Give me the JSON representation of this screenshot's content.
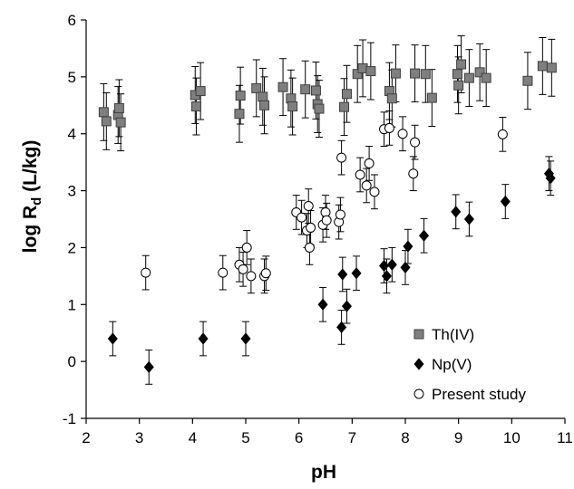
{
  "chart_data": {
    "type": "scatter",
    "xlabel": "pH",
    "ylabel_main": "log R",
    "ylabel_sub": "d",
    "ylabel_unit": " (L/kg)",
    "xlim": [
      2,
      11
    ],
    "ylim": [
      -1,
      6
    ],
    "x_ticks": [
      2,
      3,
      4,
      5,
      6,
      7,
      8,
      9,
      10,
      11
    ],
    "y_ticks": [
      -1,
      0,
      1,
      2,
      3,
      4,
      5,
      6
    ],
    "legend_position": "lower-right",
    "series": [
      {
        "name": "Th(IV)",
        "marker": "square",
        "color": "#7f7f7f",
        "error": 0.5,
        "points": [
          [
            2.33,
            4.38
          ],
          [
            2.38,
            4.22
          ],
          [
            2.6,
            4.33
          ],
          [
            2.62,
            4.45
          ],
          [
            2.65,
            4.2
          ],
          [
            4.05,
            4.68
          ],
          [
            4.07,
            4.48
          ],
          [
            4.15,
            4.75
          ],
          [
            4.88,
            4.35
          ],
          [
            4.9,
            4.67
          ],
          [
            5.2,
            4.8
          ],
          [
            5.32,
            4.65
          ],
          [
            5.35,
            4.5
          ],
          [
            5.7,
            4.82
          ],
          [
            5.85,
            4.62
          ],
          [
            5.88,
            4.48
          ],
          [
            6.12,
            4.78
          ],
          [
            6.32,
            4.76
          ],
          [
            6.35,
            4.52
          ],
          [
            6.38,
            4.44
          ],
          [
            6.85,
            4.47
          ],
          [
            6.9,
            4.7
          ],
          [
            7.1,
            5.05
          ],
          [
            7.2,
            5.15
          ],
          [
            7.35,
            5.1
          ],
          [
            7.7,
            4.75
          ],
          [
            7.75,
            4.62
          ],
          [
            7.82,
            5.06
          ],
          [
            8.18,
            5.06
          ],
          [
            8.38,
            5.05
          ],
          [
            8.5,
            4.63
          ],
          [
            8.98,
            5.05
          ],
          [
            9.0,
            4.85
          ],
          [
            9.05,
            5.22
          ],
          [
            9.2,
            4.98
          ],
          [
            9.4,
            5.08
          ],
          [
            9.52,
            4.98
          ],
          [
            10.3,
            4.93
          ],
          [
            10.58,
            5.19
          ],
          [
            10.75,
            5.16
          ]
        ]
      },
      {
        "name": "Np(V)",
        "marker": "diamond",
        "color": "#000000",
        "error": 0.3,
        "points": [
          [
            2.5,
            0.4
          ],
          [
            3.18,
            -0.1
          ],
          [
            4.2,
            0.4
          ],
          [
            5.0,
            0.4
          ],
          [
            6.45,
            1.0
          ],
          [
            6.8,
            0.6
          ],
          [
            6.82,
            1.53
          ],
          [
            6.9,
            0.97
          ],
          [
            7.08,
            1.55
          ],
          [
            7.6,
            1.68
          ],
          [
            7.65,
            1.5
          ],
          [
            7.75,
            1.7
          ],
          [
            8.0,
            1.65
          ],
          [
            8.05,
            2.02
          ],
          [
            8.35,
            2.21
          ],
          [
            8.95,
            2.63
          ],
          [
            9.2,
            2.5
          ],
          [
            9.88,
            2.81
          ],
          [
            10.7,
            3.3
          ],
          [
            10.73,
            3.22
          ]
        ]
      },
      {
        "name": "Present study",
        "marker": "circle",
        "color": "#ffffff",
        "error": 0.3,
        "points": [
          [
            3.12,
            1.56
          ],
          [
            4.57,
            1.56
          ],
          [
            4.88,
            1.7
          ],
          [
            4.95,
            1.62
          ],
          [
            5.02,
            2.0
          ],
          [
            5.1,
            1.5
          ],
          [
            5.35,
            1.5
          ],
          [
            5.38,
            1.55
          ],
          [
            5.95,
            2.62
          ],
          [
            6.05,
            2.53
          ],
          [
            6.15,
            2.3
          ],
          [
            6.18,
            2.73
          ],
          [
            6.2,
            2.0
          ],
          [
            6.22,
            2.35
          ],
          [
            6.45,
            2.4
          ],
          [
            6.5,
            2.62
          ],
          [
            6.52,
            2.48
          ],
          [
            6.75,
            2.45
          ],
          [
            6.78,
            2.58
          ],
          [
            6.8,
            3.58
          ],
          [
            7.15,
            3.28
          ],
          [
            7.27,
            3.09
          ],
          [
            7.32,
            3.48
          ],
          [
            7.42,
            2.98
          ],
          [
            7.6,
            4.08
          ],
          [
            7.7,
            4.1
          ],
          [
            7.95,
            4.0
          ],
          [
            8.15,
            3.3
          ],
          [
            8.18,
            3.85
          ],
          [
            9.83,
            3.99
          ]
        ]
      }
    ]
  }
}
